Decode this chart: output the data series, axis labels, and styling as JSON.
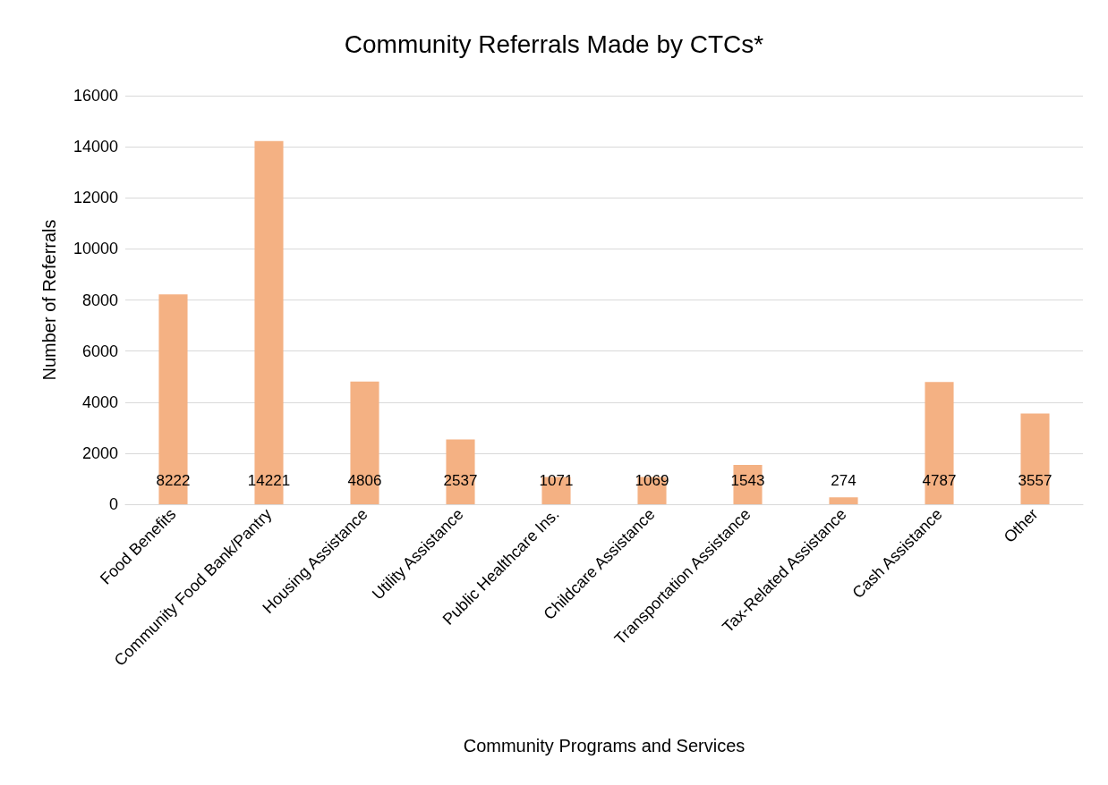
{
  "chart_data": {
    "type": "bar",
    "title": "Community Referrals Made by CTCs*",
    "xlabel": "Community Programs and Services",
    "ylabel": "Number of Referrals",
    "categories": [
      "Food Benefits",
      "Community Food Bank/Pantry",
      "Housing Assistance",
      "Utility Assistance",
      "Public Healthcare Ins.",
      "Childcare Assistance",
      "Transportation Assistance",
      "Tax-Related Assistance",
      "Cash Assistance",
      "Other"
    ],
    "values": [
      8222,
      14221,
      4806,
      2537,
      1071,
      1069,
      1543,
      274,
      4787,
      3557
    ],
    "color": "#f4b183",
    "ylim": [
      0,
      16000
    ],
    "yticks": [
      0,
      2000,
      4000,
      6000,
      8000,
      10000,
      12000,
      14000,
      16000
    ],
    "grid": "y",
    "data_labels": true
  }
}
